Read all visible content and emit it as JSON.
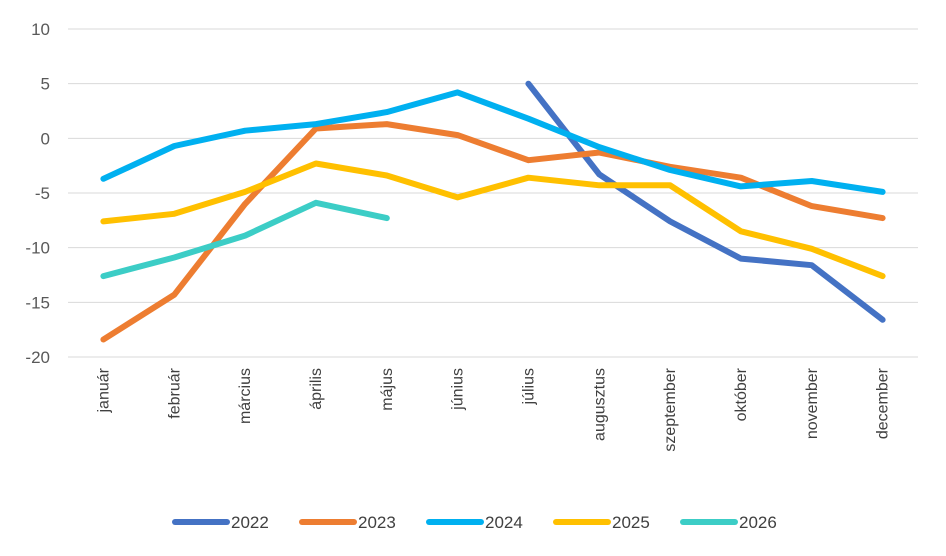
{
  "chart_data": {
    "type": "line",
    "title": "",
    "xlabel": "",
    "ylabel": "",
    "categories": [
      "január",
      "február",
      "március",
      "április",
      "május",
      "június",
      "július",
      "augusztus",
      "szeptember",
      "október",
      "november",
      "december"
    ],
    "ylim": [
      -20,
      10
    ],
    "yticks": [
      10,
      5,
      0,
      -5,
      -10,
      -15,
      -20
    ],
    "grid": true,
    "legend_position": "bottom",
    "series": [
      {
        "name": "2022",
        "color": "#4472C4",
        "values": [
          null,
          null,
          null,
          null,
          null,
          null,
          5.0,
          -3.3,
          -7.6,
          -11.0,
          -11.6,
          -16.6
        ]
      },
      {
        "name": "2023",
        "color": "#ED7D31",
        "values": [
          -18.4,
          -14.3,
          -6.0,
          0.9,
          1.3,
          0.3,
          -2.0,
          -1.3,
          -2.6,
          -3.6,
          -6.2,
          -7.3
        ]
      },
      {
        "name": "2024",
        "color": "#00B0F0",
        "values": [
          -3.7,
          -0.7,
          0.7,
          1.3,
          2.4,
          4.2,
          1.8,
          -0.8,
          -2.9,
          -4.4,
          -3.9,
          -4.9
        ]
      },
      {
        "name": "2025",
        "color": "#FFC000",
        "values": [
          -7.6,
          -6.9,
          -4.9,
          -2.3,
          -3.4,
          -5.4,
          -3.6,
          -4.3,
          -4.3,
          -8.5,
          -10.1,
          -12.6
        ]
      },
      {
        "name": "2026",
        "color": "#3CCDC6",
        "values": [
          -12.6,
          -10.9,
          -8.9,
          -5.9,
          -7.3,
          null,
          null,
          null,
          null,
          null,
          null,
          null
        ]
      }
    ]
  }
}
